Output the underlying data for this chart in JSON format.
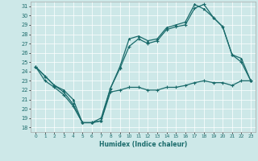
{
  "xlabel": "Humidex (Indice chaleur)",
  "xlim": [
    -0.5,
    23.5
  ],
  "ylim": [
    17.5,
    31.5
  ],
  "bg_color": "#cde8e8",
  "grid_color": "#ffffff",
  "line_color": "#1a6b6b",
  "xtick_labels": [
    "0",
    "1",
    "2",
    "3",
    "4",
    "5",
    "6",
    "7",
    "8",
    "9",
    "10",
    "11",
    "12",
    "13",
    "14",
    "15",
    "16",
    "17",
    "18",
    "19",
    "20",
    "21",
    "22",
    "23"
  ],
  "ytick_vals": [
    18,
    19,
    20,
    21,
    22,
    23,
    24,
    25,
    26,
    27,
    28,
    29,
    30,
    31
  ],
  "curve1_y": [
    24.5,
    23.5,
    22.5,
    22.0,
    21.0,
    18.5,
    18.5,
    18.7,
    22.2,
    24.5,
    27.5,
    27.8,
    27.3,
    27.5,
    28.7,
    29.0,
    29.3,
    31.2,
    30.7,
    29.8,
    28.8,
    25.8,
    25.4,
    23.0
  ],
  "curve2_y": [
    24.5,
    23.0,
    22.3,
    21.5,
    20.3,
    18.5,
    18.5,
    19.0,
    22.2,
    24.3,
    26.7,
    27.5,
    27.0,
    27.3,
    28.5,
    28.8,
    29.0,
    30.8,
    31.2,
    29.8,
    28.8,
    25.8,
    25.0,
    23.0
  ],
  "curve3_y": [
    24.5,
    23.5,
    22.5,
    21.8,
    20.5,
    18.5,
    18.5,
    18.7,
    21.8,
    22.0,
    22.3,
    22.3,
    22.0,
    22.0,
    22.3,
    22.3,
    22.5,
    22.8,
    23.0,
    22.8,
    22.8,
    22.5,
    23.0,
    23.0
  ]
}
